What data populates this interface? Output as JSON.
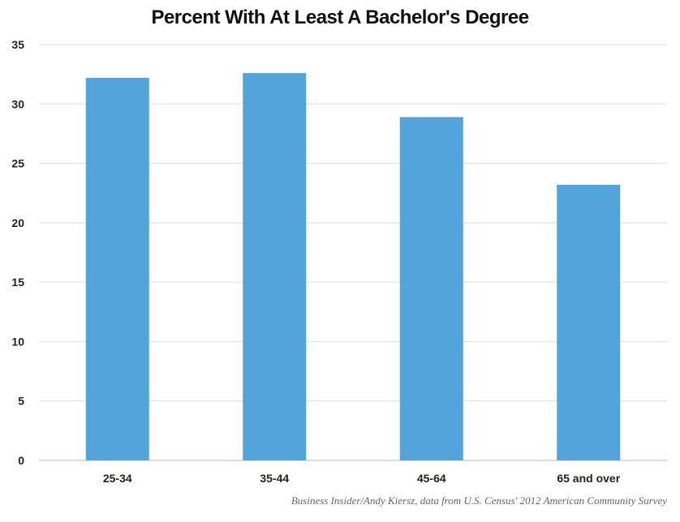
{
  "chart_data": {
    "type": "bar",
    "title": "Percent With At Least A Bachelor's Degree",
    "categories": [
      "25-34",
      "35-44",
      "45-64",
      "65 and over"
    ],
    "values": [
      32.2,
      32.6,
      28.9,
      23.2
    ],
    "ylim": [
      0,
      35
    ],
    "yticks": [
      0,
      5,
      10,
      15,
      20,
      25,
      30,
      35
    ],
    "xlabel": "",
    "ylabel": "",
    "grid": true,
    "bar_color": "#52a4da",
    "grid_color": "#dddddd"
  },
  "source": "Business Insider/Andy Kiersz, data from U.S. Census' 2012 American Community Survey"
}
